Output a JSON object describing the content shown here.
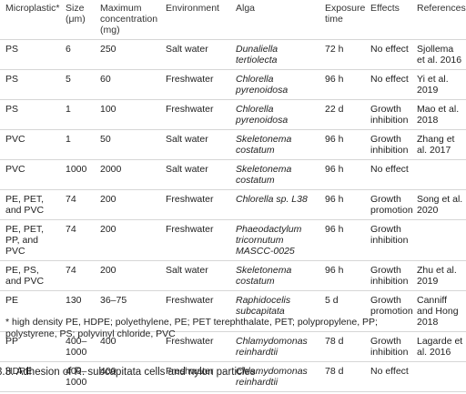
{
  "table": {
    "header": [
      "Microplastic*",
      "Size (μm)",
      "Maximum concentration (mg)",
      "Environment",
      "Alga",
      "Exposure time",
      "Effects",
      "References"
    ],
    "rows": [
      [
        "PS",
        "6",
        "250",
        "Salt water",
        "Dunaliella tertiolecta",
        "72 h",
        "No effect",
        "Sjollema et al. 2016"
      ],
      [
        "PS",
        "5",
        "60",
        "Freshwater",
        "Chlorella pyrenoidosa",
        "96 h",
        "No effect",
        "Yi et al. 2019"
      ],
      [
        "PS",
        "1",
        "100",
        "Freshwater",
        "Chlorella pyrenoidosa",
        "22 d",
        "Growth inhibition",
        "Mao et al. 2018"
      ],
      [
        "PVC",
        "1",
        "50",
        "Salt water",
        "Skeletonema costatum",
        "96 h",
        "Growth inhibition",
        "Zhang et al. 2017"
      ],
      [
        "PVC",
        "1000",
        "2000",
        "Salt water",
        "Skeletonema costatum",
        "96 h",
        "No effect"
      ],
      [
        "PE, PET, and PVC",
        "74",
        "200",
        "Freshwater",
        "Chlorella sp. L38",
        "96 h",
        "Growth promotion",
        "Song et al. 2020"
      ],
      [
        "PE, PET, PP, and PVC",
        "74",
        "200",
        "Freshwater",
        "Phaeodactylum tricornutum MASCC-0025",
        "96 h",
        "Growth inhibition"
      ],
      [
        "PE, PS, and PVC",
        "74",
        "200",
        "Salt water",
        "Skeletonema costatum",
        "96 h",
        "Growth inhibition",
        "Zhu et al. 2019"
      ],
      [
        "PE",
        "130",
        "36–75",
        "Freshwater",
        "Raphidocelis subcapitata",
        "5 d",
        "Growth promotion",
        "Canniff and Hong 2018"
      ],
      [
        "PP",
        "400–1000",
        "400",
        "Freshwater",
        "Chlamydomonas reinhardtii",
        "78 d",
        "Growth inhibition",
        "Lagarde et al. 2016"
      ],
      [
        "HDPE",
        "400–1000",
        "400",
        "Freshwater",
        "Chlamydomonas reinhardtii",
        "78 d",
        "No effect"
      ]
    ],
    "footnote": "* high density PE, HDPE; polyethylene, PE; PET terephthalate, PET; polypropylene, PP; polystyrene, PS; polyvinyl chloride, PVC"
  },
  "section_heading": "3.3. Adhesion of R. subcapitata cells and nylon particles"
}
